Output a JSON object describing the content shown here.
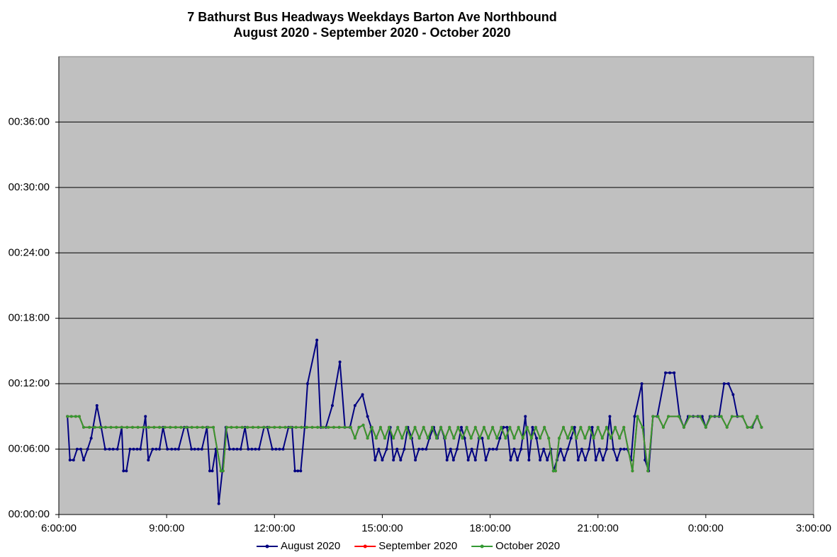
{
  "chart_data": {
    "type": "line",
    "title": "7 Bathurst Bus Headways Weekdays Barton Ave Northbound",
    "subtitle": "August 2020 - September 2020 - October 2020",
    "xlim": [
      6,
      27
    ],
    "xticks": [
      {
        "value": 6,
        "label": "6:00:00"
      },
      {
        "value": 9,
        "label": "9:00:00"
      },
      {
        "value": 12,
        "label": "12:00:00"
      },
      {
        "value": 15,
        "label": "15:00:00"
      },
      {
        "value": 18,
        "label": "18:00:00"
      },
      {
        "value": 21,
        "label": "21:00:00"
      },
      {
        "value": 24,
        "label": "0:00:00"
      },
      {
        "value": 27,
        "label": "3:00:00"
      }
    ],
    "ylim": [
      0,
      42
    ],
    "yticks": [
      {
        "value": 0,
        "label": "00:00:00"
      },
      {
        "value": 6,
        "label": "00:06:00"
      },
      {
        "value": 12,
        "label": "00:12:00"
      },
      {
        "value": 18,
        "label": "00:18:00"
      },
      {
        "value": 24,
        "label": "00:24:00"
      },
      {
        "value": 30,
        "label": "00:30:00"
      },
      {
        "value": 36,
        "label": "00:36:00"
      }
    ],
    "grid": true,
    "legend": "bottom",
    "series": [
      {
        "name": "August 2020",
        "color": "#000080",
        "x": [
          6.24,
          6.31,
          6.41,
          6.51,
          6.61,
          6.69,
          6.8,
          6.9,
          7.06,
          7.18,
          7.29,
          7.41,
          7.51,
          7.63,
          7.75,
          7.8,
          7.88,
          7.98,
          8.08,
          8.18,
          8.27,
          8.41,
          8.49,
          8.61,
          8.71,
          8.8,
          8.9,
          9.02,
          9.14,
          9.24,
          9.33,
          9.49,
          9.57,
          9.69,
          9.78,
          9.88,
          9.98,
          10.12,
          10.2,
          10.27,
          10.37,
          10.45,
          10.55,
          10.65,
          10.75,
          10.86,
          10.96,
          11.06,
          11.18,
          11.27,
          11.37,
          11.47,
          11.57,
          11.71,
          11.8,
          11.94,
          12.04,
          12.14,
          12.24,
          12.39,
          12.49,
          12.57,
          12.65,
          12.73,
          12.84,
          12.92,
          13.18,
          13.29,
          13.43,
          13.61,
          13.82,
          13.96,
          14.1,
          14.24,
          14.45,
          14.59,
          14.69,
          14.8,
          14.9,
          15.0,
          15.12,
          15.22,
          15.31,
          15.41,
          15.51,
          15.61,
          15.71,
          15.82,
          15.92,
          16.02,
          16.12,
          16.22,
          16.31,
          16.43,
          16.53,
          16.63,
          16.73,
          16.8,
          16.9,
          16.98,
          17.08,
          17.2,
          17.29,
          17.39,
          17.49,
          17.59,
          17.69,
          17.78,
          17.88,
          17.98,
          18.08,
          18.18,
          18.27,
          18.37,
          18.47,
          18.57,
          18.67,
          18.76,
          18.86,
          18.98,
          19.08,
          19.18,
          19.29,
          19.39,
          19.49,
          19.59,
          19.69,
          19.76,
          19.86,
          19.96,
          20.06,
          20.16,
          20.25,
          20.35,
          20.45,
          20.55,
          20.65,
          20.75,
          20.84,
          20.94,
          21.04,
          21.14,
          21.24,
          21.33,
          21.43,
          21.53,
          21.63,
          21.73,
          21.82,
          21.92,
          22.02,
          22.22,
          22.31,
          22.41,
          22.53,
          22.65,
          22.88,
          23.0,
          23.12,
          23.27,
          23.39,
          23.51,
          23.65,
          23.78,
          23.9,
          24.0,
          24.12,
          24.25,
          24.37,
          24.51,
          24.63,
          24.76,
          24.88,
          25.02,
          25.16,
          25.29,
          25.43,
          25.55
        ],
        "values": [
          9,
          5,
          5,
          6,
          6,
          5,
          6,
          7,
          10,
          8,
          6,
          6,
          6,
          6,
          8,
          4,
          4,
          6,
          6,
          6,
          6,
          9,
          5,
          6,
          6,
          6,
          8,
          6,
          6,
          6,
          6,
          8,
          8,
          6,
          6,
          6,
          6,
          8,
          4,
          4,
          6,
          1,
          4,
          8,
          6,
          6,
          6,
          6,
          8,
          6,
          6,
          6,
          6,
          8,
          8,
          6,
          6,
          6,
          6,
          8,
          8,
          4,
          4,
          4,
          8,
          12,
          16,
          8,
          8,
          10,
          14,
          8,
          8,
          10,
          11,
          9,
          8,
          5,
          6,
          5,
          6,
          8,
          5,
          6,
          5,
          6,
          8,
          7,
          5,
          6,
          6,
          6,
          7,
          8,
          7,
          8,
          7,
          5,
          6,
          5,
          6,
          8,
          7,
          5,
          6,
          5,
          7,
          7,
          5,
          6,
          6,
          6,
          7,
          8,
          8,
          5,
          6,
          5,
          6,
          9,
          5,
          8,
          7,
          5,
          6,
          5,
          6,
          4,
          5,
          6,
          5,
          6,
          7,
          8,
          5,
          6,
          5,
          6,
          8,
          5,
          6,
          5,
          6,
          9,
          6,
          5,
          6,
          6,
          6,
          5,
          9,
          12,
          5,
          4,
          9,
          9,
          13,
          13,
          13,
          9,
          8,
          9,
          9,
          9,
          9,
          8,
          9,
          9,
          9,
          12,
          12,
          11,
          9,
          9,
          8,
          8,
          9,
          8
        ]
      },
      {
        "name": "September 2020",
        "color": "#ff0000",
        "x": [
          6.24,
          6.35,
          6.47,
          6.57,
          6.69,
          6.85,
          7.0,
          7.15,
          7.3,
          7.45,
          7.6,
          7.75,
          7.9,
          8.05,
          8.2,
          8.35,
          8.5,
          8.65,
          8.8,
          8.95,
          9.1,
          9.25,
          9.4,
          9.55,
          9.7,
          9.85,
          10.0,
          10.15,
          10.3,
          10.51,
          10.57,
          10.67,
          10.8,
          10.95,
          11.1,
          11.25,
          11.4,
          11.55,
          11.7,
          11.85,
          12.0,
          12.15,
          12.3,
          12.45,
          12.6,
          12.75,
          12.9,
          13.05,
          13.2,
          13.35,
          13.5,
          13.65,
          13.8,
          13.95,
          14.12,
          14.24,
          14.35,
          14.47,
          14.59,
          14.71,
          14.83,
          14.95,
          15.07,
          15.19,
          15.31,
          15.43,
          15.55,
          15.67,
          15.79,
          15.91,
          16.03,
          16.15,
          16.27,
          16.39,
          16.51,
          16.63,
          16.75,
          16.87,
          16.99,
          17.11,
          17.23,
          17.35,
          17.47,
          17.59,
          17.71,
          17.83,
          17.95,
          18.07,
          18.19,
          18.31,
          18.43,
          18.55,
          18.67,
          18.79,
          18.91,
          19.03,
          19.15,
          19.27,
          19.39,
          19.51,
          19.63,
          19.76,
          19.82,
          19.92,
          20.04,
          20.16,
          20.28,
          20.4,
          20.52,
          20.64,
          20.76,
          20.88,
          21.0,
          21.12,
          21.24,
          21.36,
          21.48,
          21.6,
          21.72,
          21.96,
          22.1,
          22.24,
          22.39,
          22.53,
          22.67,
          22.82,
          22.96,
          23.25,
          23.39,
          23.55,
          23.84,
          24.0,
          24.14,
          24.43,
          24.59,
          24.73,
          25.02,
          25.16,
          25.27,
          25.43,
          25.55
        ],
        "values": [
          9,
          9,
          9,
          9,
          8,
          8,
          8,
          8,
          8,
          8,
          8,
          8,
          8,
          8,
          8,
          8,
          8,
          8,
          8,
          8,
          8,
          8,
          8,
          8,
          8,
          8,
          8,
          8,
          8,
          4,
          4,
          8,
          8,
          8,
          8,
          8,
          8,
          8,
          8,
          8,
          8,
          8,
          8,
          8,
          8,
          8,
          8,
          8,
          8,
          8,
          8,
          8,
          8,
          8,
          8,
          7,
          8,
          8.2,
          7,
          8,
          7,
          8,
          7,
          8,
          7,
          8,
          7,
          8,
          7,
          8,
          7,
          8,
          7,
          8,
          7,
          8,
          7,
          8,
          7,
          8,
          7,
          8,
          7,
          8,
          7,
          8,
          7,
          8,
          7,
          8,
          7,
          8,
          7,
          8,
          7,
          8,
          7,
          8,
          7,
          8,
          7,
          4,
          4,
          7,
          8,
          7,
          8,
          7,
          8,
          7,
          8,
          7,
          8,
          7,
          8,
          7,
          8,
          7,
          8,
          4,
          9,
          8,
          4,
          9,
          9,
          8,
          9,
          9,
          8,
          9,
          9,
          8,
          9,
          9,
          8,
          9,
          9,
          8,
          8,
          9,
          8
        ]
      },
      {
        "name": "October 2020",
        "color": "#339933",
        "x": [
          6.24,
          6.35,
          6.47,
          6.57,
          6.69,
          6.85,
          7.0,
          7.15,
          7.3,
          7.45,
          7.6,
          7.75,
          7.9,
          8.05,
          8.2,
          8.35,
          8.5,
          8.65,
          8.8,
          8.95,
          9.1,
          9.25,
          9.4,
          9.55,
          9.7,
          9.85,
          10.0,
          10.15,
          10.3,
          10.51,
          10.57,
          10.67,
          10.8,
          10.95,
          11.1,
          11.25,
          11.4,
          11.55,
          11.7,
          11.85,
          12.0,
          12.15,
          12.3,
          12.45,
          12.6,
          12.75,
          12.9,
          13.05,
          13.2,
          13.35,
          13.5,
          13.65,
          13.8,
          13.95,
          14.12,
          14.24,
          14.35,
          14.47,
          14.59,
          14.71,
          14.83,
          14.95,
          15.07,
          15.19,
          15.31,
          15.43,
          15.55,
          15.67,
          15.79,
          15.91,
          16.03,
          16.15,
          16.27,
          16.39,
          16.51,
          16.63,
          16.75,
          16.87,
          16.99,
          17.11,
          17.23,
          17.35,
          17.47,
          17.59,
          17.71,
          17.83,
          17.95,
          18.07,
          18.19,
          18.31,
          18.43,
          18.55,
          18.67,
          18.79,
          18.91,
          19.03,
          19.15,
          19.27,
          19.39,
          19.51,
          19.63,
          19.76,
          19.82,
          19.92,
          20.04,
          20.16,
          20.28,
          20.4,
          20.52,
          20.64,
          20.76,
          20.88,
          21.0,
          21.12,
          21.24,
          21.36,
          21.48,
          21.6,
          21.72,
          21.96,
          22.1,
          22.24,
          22.39,
          22.53,
          22.67,
          22.82,
          22.96,
          23.25,
          23.39,
          23.55,
          23.84,
          24.0,
          24.14,
          24.43,
          24.59,
          24.73,
          25.02,
          25.16,
          25.27,
          25.43,
          25.55
        ],
        "values": [
          9,
          9,
          9,
          9,
          8,
          8,
          8,
          8,
          8,
          8,
          8,
          8,
          8,
          8,
          8,
          8,
          8,
          8,
          8,
          8,
          8,
          8,
          8,
          8,
          8,
          8,
          8,
          8,
          8,
          4,
          4,
          8,
          8,
          8,
          8,
          8,
          8,
          8,
          8,
          8,
          8,
          8,
          8,
          8,
          8,
          8,
          8,
          8,
          8,
          8,
          8,
          8,
          8,
          8,
          8,
          7,
          8,
          8.2,
          7,
          8,
          7,
          8,
          7,
          8,
          7,
          8,
          7,
          8,
          7,
          8,
          7,
          8,
          7,
          8,
          7,
          8,
          7,
          8,
          7,
          8,
          7,
          8,
          7,
          8,
          7,
          8,
          7,
          8,
          7,
          8,
          7,
          8,
          7,
          8,
          7,
          8,
          7,
          8,
          7,
          8,
          7,
          4,
          4,
          7,
          8,
          7,
          8,
          7,
          8,
          7,
          8,
          7,
          8,
          7,
          8,
          7,
          8,
          7,
          8,
          4,
          9,
          8,
          4,
          9,
          9,
          8,
          9,
          9,
          8,
          9,
          9,
          8,
          9,
          9,
          8,
          9,
          9,
          8,
          8,
          9,
          8
        ]
      }
    ]
  }
}
